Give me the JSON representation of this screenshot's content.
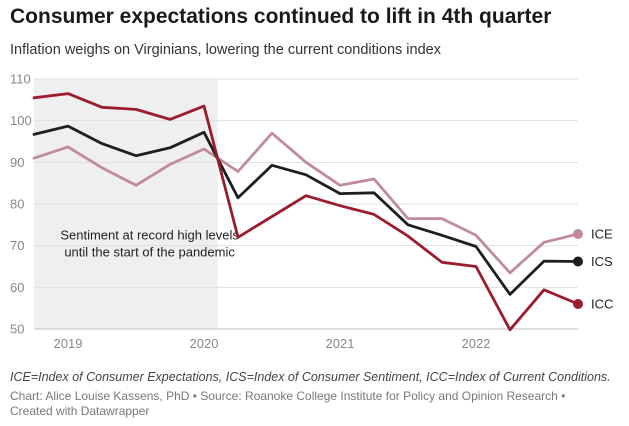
{
  "title": "Consumer expectations continued to lift in 4th quarter",
  "subtitle": "Inflation weighs on Virginians, lowering the current conditions index",
  "footnote": "ICE=Index of Consumer Expectations, ICS=Index of Consumer Sentiment, ICC=Index of Current Conditions.",
  "credit": "Chart: Alice Louise Kassens, PhD • Source: Roanoke College Institute for Policy and Opinion Research • Created with Datawrapper",
  "chart_data": {
    "type": "line",
    "x": [
      2018.75,
      2019.0,
      2019.25,
      2019.5,
      2019.75,
      2020.0,
      2020.25,
      2020.5,
      2020.75,
      2021.0,
      2021.25,
      2021.5,
      2021.75,
      2022.0,
      2022.25,
      2022.5,
      2022.75
    ],
    "xticks": [
      {
        "value": 2019,
        "label": "2019"
      },
      {
        "value": 2020,
        "label": "2020"
      },
      {
        "value": 2021,
        "label": "2021"
      },
      {
        "value": 2022,
        "label": "2022"
      }
    ],
    "yticks": [
      50,
      60,
      70,
      80,
      90,
      100,
      110
    ],
    "ylim": [
      50,
      110
    ],
    "xlim": [
      2018.75,
      2022.75
    ],
    "grid": true,
    "series": [
      {
        "name": "ICE",
        "color": "#c18b9a",
        "values": [
          91,
          93.7,
          88.7,
          84.5,
          89.5,
          93.2,
          87.8,
          97,
          90,
          84.5,
          86,
          76.5,
          76.5,
          72.5,
          63.5,
          70.8,
          72.8
        ]
      },
      {
        "name": "ICS",
        "color": "#1e1e1e",
        "values": [
          96.7,
          98.7,
          94.5,
          91.6,
          93.5,
          97.2,
          81.5,
          89.3,
          87,
          82.5,
          82.7,
          75,
          72.5,
          69.8,
          58.3,
          66.3,
          66.2
        ]
      },
      {
        "name": "ICC",
        "color": "#9b1c2e",
        "values": [
          105.5,
          106.5,
          103.2,
          102.7,
          100.3,
          103.5,
          72,
          77,
          82,
          79.6,
          77.5,
          72.3,
          66,
          65,
          49.8,
          59.4,
          56
        ]
      }
    ],
    "shaded_region": {
      "x_start": 2018.75,
      "x_end": 2020.1,
      "color": "#efefef"
    },
    "annotation": {
      "lines": [
        "Sentiment at record high levels",
        "until the start of the pandemic"
      ],
      "x": 2019.6,
      "y": 71.5
    }
  }
}
